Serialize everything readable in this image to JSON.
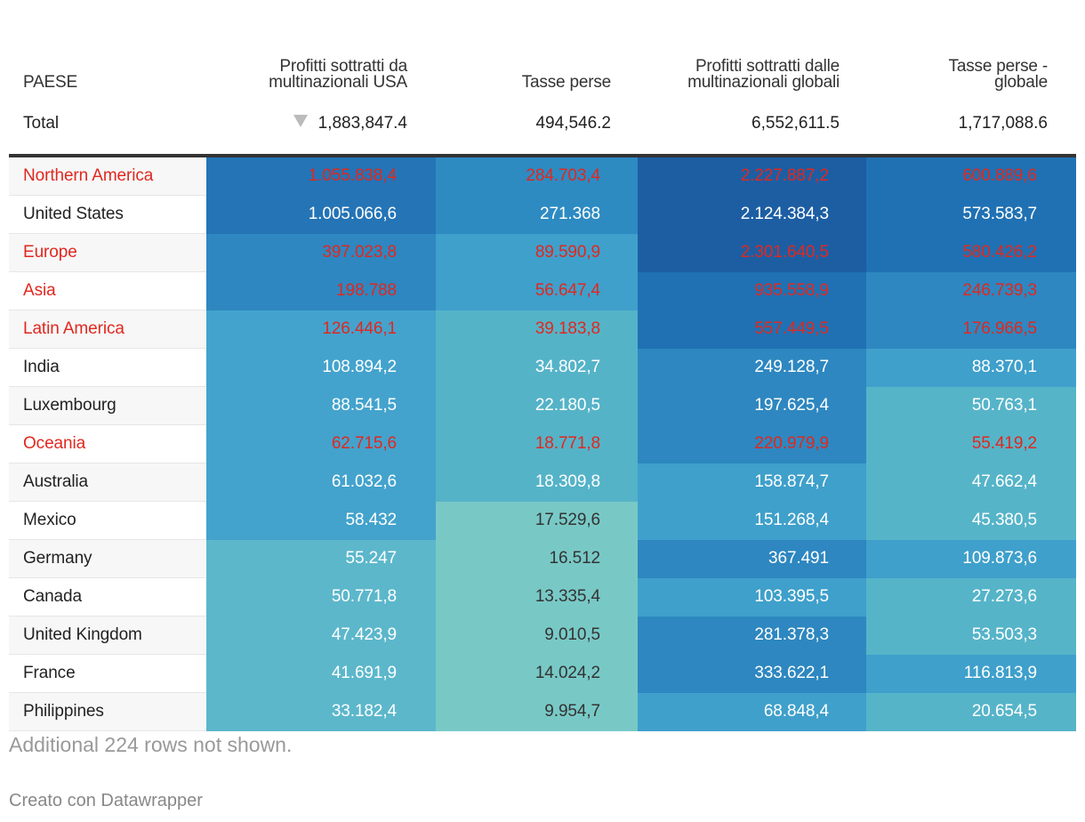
{
  "table": {
    "headers": {
      "country": "PAESE",
      "usa_profits": "Profitti sottratti da multinazionali USA",
      "taxes_lost": "Tasse perse",
      "global_profits": "Profitti sottratti dalle multinazionali globali",
      "taxes_lost_global": "Tasse perse - globale"
    },
    "total": {
      "label": "Total",
      "usa_profits": "1,883,847.4",
      "taxes_lost": "494,546.2",
      "global_profits": "6,552,611.5",
      "taxes_lost_global": "1,717,088.6"
    },
    "rows": [
      {
        "name": "Northern America",
        "region": true,
        "v1": "1.055.838,4",
        "v2": "284.703,4",
        "v3": "2.227.887,2",
        "v4": "600.889,6",
        "c1": "#2474b6",
        "c2": "#2d8bc2",
        "c3": "#1d5ea3",
        "c4": "#2071b3"
      },
      {
        "name": "United States",
        "region": false,
        "v1": "1.005.066,6",
        "v2": "271.368",
        "v3": "2.124.384,3",
        "v4": "573.583,7",
        "c1": "#2474b6",
        "c2": "#2d8bc2",
        "c3": "#1d5ea3",
        "c4": "#2071b3"
      },
      {
        "name": "Europe",
        "region": true,
        "v1": "397.023,8",
        "v2": "89.590,9",
        "v3": "2.301.640,5",
        "v4": "580.426,2",
        "c1": "#2e87c0",
        "c2": "#3fa0cb",
        "c3": "#1d5ea3",
        "c4": "#2071b3"
      },
      {
        "name": "Asia",
        "region": true,
        "v1": "198.788",
        "v2": "56.647,4",
        "v3": "935.558,9",
        "v4": "246.739,3",
        "c1": "#2e87c0",
        "c2": "#3fa0cb",
        "c3": "#2071b3",
        "c4": "#2e87c0"
      },
      {
        "name": "Latin America",
        "region": true,
        "v1": "126.446,1",
        "v2": "39.183,8",
        "v3": "557.449,5",
        "v4": "176.966,5",
        "c1": "#43a3cd",
        "c2": "#55b3c8",
        "c3": "#2071b3",
        "c4": "#2e87c0"
      },
      {
        "name": "India",
        "region": false,
        "v1": "108.894,2",
        "v2": "34.802,7",
        "v3": "249.128,7",
        "v4": "88.370,1",
        "c1": "#43a3cd",
        "c2": "#55b3c8",
        "c3": "#2e87c0",
        "c4": "#3fa0cb"
      },
      {
        "name": "Luxembourg",
        "region": false,
        "v1": "88.541,5",
        "v2": "22.180,5",
        "v3": "197.625,4",
        "v4": "50.763,1",
        "c1": "#43a3cd",
        "c2": "#55b3c8",
        "c3": "#2e87c0",
        "c4": "#56b4c9"
      },
      {
        "name": "Oceania",
        "region": true,
        "v1": "62.715,6",
        "v2": "18.771,8",
        "v3": "220.979,9",
        "v4": "55.419,2",
        "c1": "#43a3cd",
        "c2": "#55b3c8",
        "c3": "#2e87c0",
        "c4": "#56b4c9"
      },
      {
        "name": "Australia",
        "region": false,
        "v1": "61.032,6",
        "v2": "18.309,8",
        "v3": "158.874,7",
        "v4": "47.662,4",
        "c1": "#43a3cd",
        "c2": "#55b3c8",
        "c3": "#3fa0cb",
        "c4": "#56b4c9"
      },
      {
        "name": "Mexico",
        "region": false,
        "v1": "58.432",
        "v2": "17.529,6",
        "v3": "151.268,4",
        "v4": "45.380,5",
        "c1": "#43a3cd",
        "c2": "#78c9c6",
        "c3": "#3fa0cb",
        "c4": "#56b4c9"
      },
      {
        "name": "Germany",
        "region": false,
        "v1": "55.247",
        "v2": "16.512",
        "v3": "367.491",
        "v4": "109.873,6",
        "c1": "#5cb7cb",
        "c2": "#78c9c6",
        "c3": "#2e87c0",
        "c4": "#3fa0cb"
      },
      {
        "name": "Canada",
        "region": false,
        "v1": "50.771,8",
        "v2": "13.335,4",
        "v3": "103.395,5",
        "v4": "27.273,6",
        "c1": "#5cb7cb",
        "c2": "#78c9c6",
        "c3": "#3fa0cb",
        "c4": "#56b4c9"
      },
      {
        "name": "United Kingdom",
        "region": false,
        "v1": "47.423,9",
        "v2": "9.010,5",
        "v3": "281.378,3",
        "v4": "53.503,3",
        "c1": "#5cb7cb",
        "c2": "#78c9c6",
        "c3": "#2e87c0",
        "c4": "#56b4c9"
      },
      {
        "name": "France",
        "region": false,
        "v1": "41.691,9",
        "v2": "14.024,2",
        "v3": "333.622,1",
        "v4": "116.813,9",
        "c1": "#5cb7cb",
        "c2": "#78c9c6",
        "c3": "#2e87c0",
        "c4": "#3fa0cb"
      },
      {
        "name": "Philippines",
        "region": false,
        "v1": "33.182,4",
        "v2": "9.954,7",
        "v3": "68.848,4",
        "v4": "20.654,5",
        "c1": "#5cb7cb",
        "c2": "#78c9c6",
        "c3": "#3fa0cb",
        "c4": "#56b4c9"
      }
    ]
  },
  "footer": {
    "note": "Additional 224 rows not shown.",
    "credit": "Creato con Datawrapper"
  },
  "colors": {
    "region_text": "#e0281f",
    "light_cell_text": "#333333"
  }
}
